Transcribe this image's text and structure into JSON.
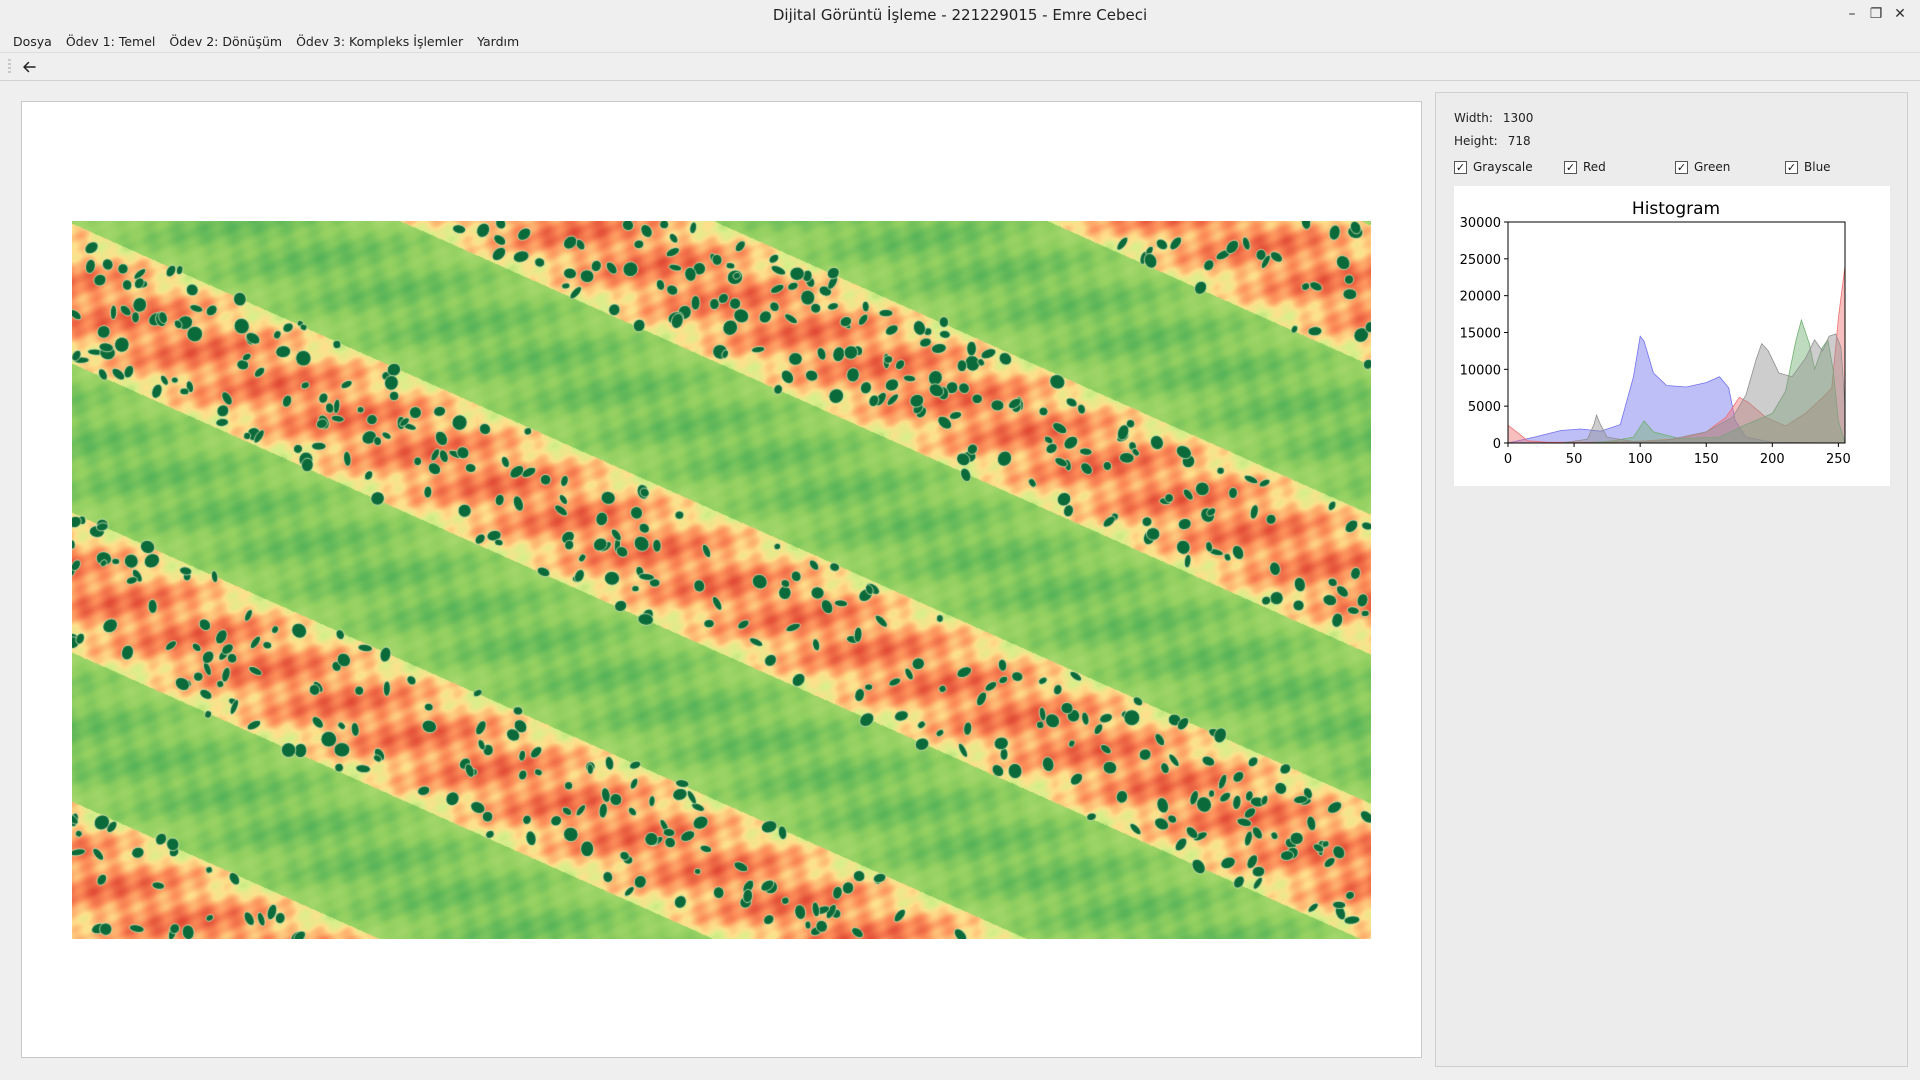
{
  "window": {
    "title": "Dijital Görüntü İşleme - 221229015 - Emre Cebeci",
    "minimize_glyph": "–",
    "restore_glyph": "❐",
    "close_glyph": "✕"
  },
  "menu": [
    {
      "label": "Dosya"
    },
    {
      "label": "Ödev 1: Temel"
    },
    {
      "label": "Ödev 2: Dönüşüm"
    },
    {
      "label": "Ödev 3: Kompleks İşlemler"
    },
    {
      "label": "Yardım"
    }
  ],
  "toolbar": {
    "back_icon": "arrow-left-icon"
  },
  "image_info": {
    "width_label": "Width:",
    "width_value": "1300",
    "height_label": "Height:",
    "height_value": "718"
  },
  "channels": [
    {
      "label": "Grayscale",
      "checked": true
    },
    {
      "label": "Red",
      "checked": true
    },
    {
      "label": "Green",
      "checked": true
    },
    {
      "label": "Blue",
      "checked": true
    }
  ],
  "chart_data": {
    "type": "area",
    "title": "Histogram",
    "xlabel": "",
    "ylabel": "",
    "xlim": [
      0,
      255
    ],
    "ylim": [
      0,
      30000
    ],
    "x_ticks": [
      0,
      50,
      100,
      150,
      200,
      250
    ],
    "y_ticks": [
      0,
      5000,
      10000,
      15000,
      20000,
      25000,
      30000
    ],
    "legend": "none",
    "series": [
      {
        "color": "#7070f0",
        "points": [
          [
            0,
            0
          ],
          [
            20,
            800
          ],
          [
            40,
            1700
          ],
          [
            55,
            1900
          ],
          [
            70,
            1600
          ],
          [
            85,
            2500
          ],
          [
            95,
            9000
          ],
          [
            100,
            14500
          ],
          [
            103,
            13800
          ],
          [
            110,
            9500
          ],
          [
            120,
            7800
          ],
          [
            135,
            7600
          ],
          [
            150,
            8200
          ],
          [
            160,
            9000
          ],
          [
            167,
            7500
          ],
          [
            172,
            3000
          ],
          [
            180,
            800
          ],
          [
            200,
            100
          ],
          [
            255,
            0
          ]
        ]
      },
      {
        "color": "#f07070",
        "points": [
          [
            0,
            2400
          ],
          [
            8,
            1300
          ],
          [
            15,
            300
          ],
          [
            30,
            100
          ],
          [
            60,
            100
          ],
          [
            100,
            250
          ],
          [
            130,
            600
          ],
          [
            150,
            1500
          ],
          [
            165,
            3500
          ],
          [
            175,
            6200
          ],
          [
            182,
            5500
          ],
          [
            195,
            3500
          ],
          [
            210,
            2300
          ],
          [
            225,
            4000
          ],
          [
            240,
            6500
          ],
          [
            245,
            7500
          ],
          [
            250,
            17000
          ],
          [
            255,
            24000
          ]
        ]
      },
      {
        "color": "#70b070",
        "points": [
          [
            0,
            0
          ],
          [
            60,
            0
          ],
          [
            80,
            300
          ],
          [
            95,
            800
          ],
          [
            103,
            3000
          ],
          [
            110,
            1500
          ],
          [
            130,
            600
          ],
          [
            160,
            800
          ],
          [
            180,
            2500
          ],
          [
            200,
            4000
          ],
          [
            210,
            7000
          ],
          [
            218,
            14000
          ],
          [
            222,
            16700
          ],
          [
            228,
            13500
          ],
          [
            232,
            10000
          ],
          [
            238,
            13000
          ],
          [
            242,
            14000
          ],
          [
            246,
            10000
          ],
          [
            250,
            3000
          ],
          [
            255,
            0
          ]
        ]
      },
      {
        "color": "#909090",
        "points": [
          [
            0,
            0
          ],
          [
            40,
            0
          ],
          [
            60,
            500
          ],
          [
            65,
            2500
          ],
          [
            67,
            3800
          ],
          [
            70,
            2500
          ],
          [
            75,
            800
          ],
          [
            95,
            200
          ],
          [
            120,
            400
          ],
          [
            150,
            1500
          ],
          [
            170,
            3500
          ],
          [
            180,
            6500
          ],
          [
            188,
            11500
          ],
          [
            192,
            13500
          ],
          [
            197,
            12500
          ],
          [
            205,
            9500
          ],
          [
            215,
            9000
          ],
          [
            225,
            11500
          ],
          [
            232,
            14000
          ],
          [
            238,
            12500
          ],
          [
            243,
            14500
          ],
          [
            248,
            14800
          ],
          [
            252,
            13000
          ],
          [
            255,
            5000
          ]
        ]
      }
    ]
  }
}
